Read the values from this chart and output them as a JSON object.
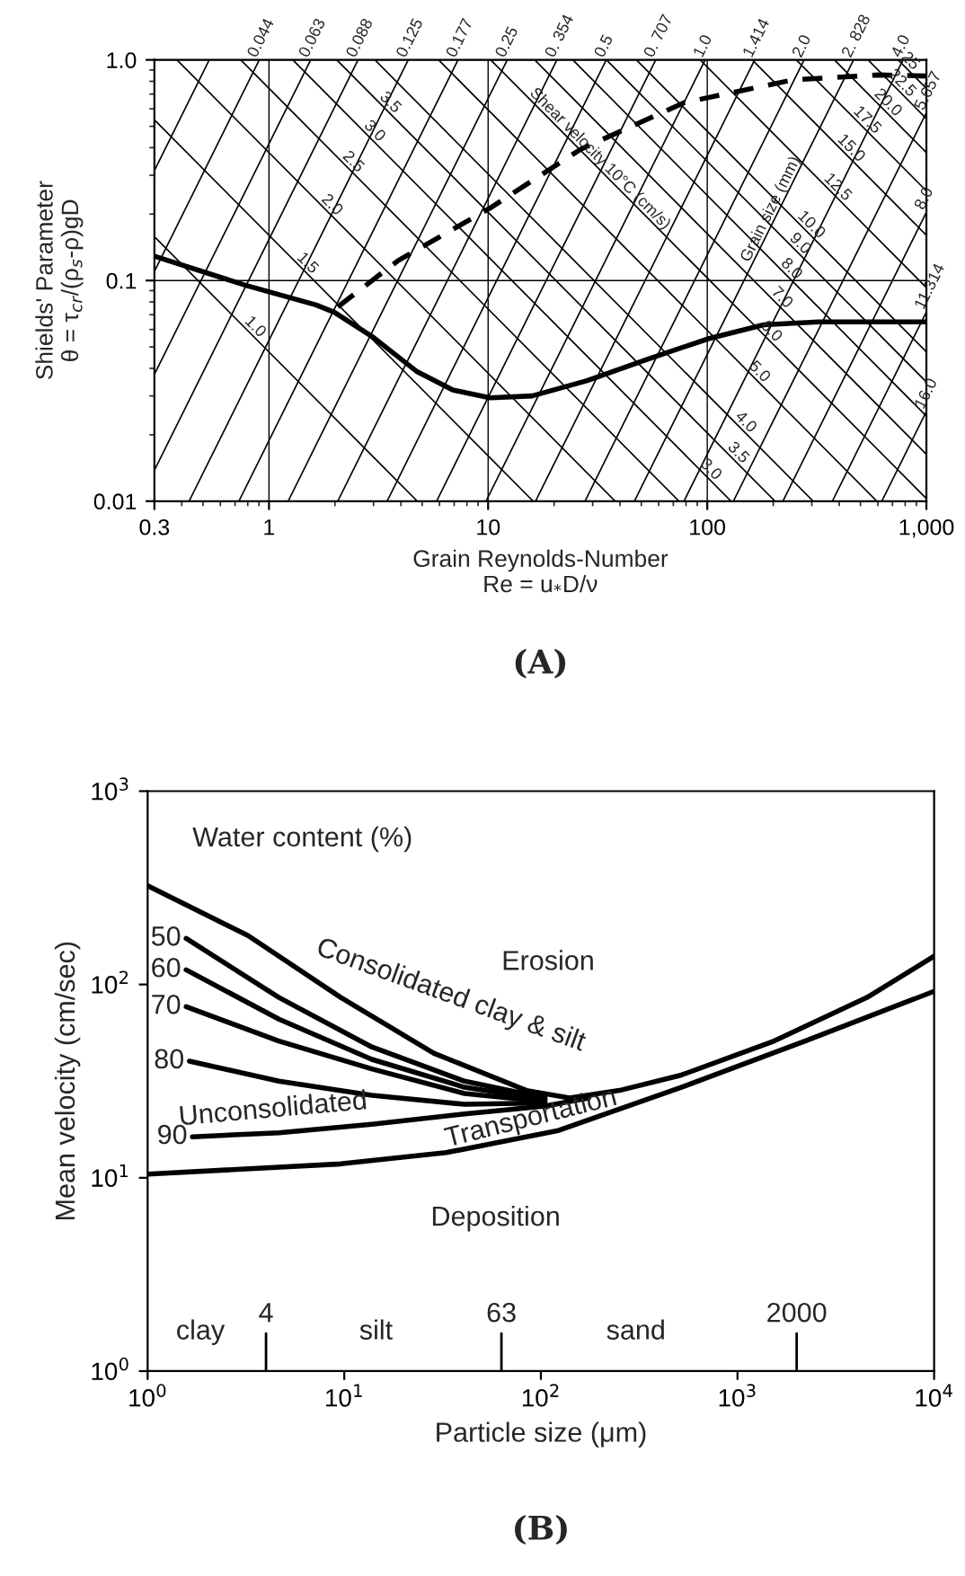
{
  "chart_data": [
    {
      "type": "line",
      "title": "(A)",
      "xlabel": "Grain Reynolds-Number\nRe = u$_{*}$D/ν",
      "ylabel": "Shields' Parameter\nθ = τ$_{cr}$/(ρ$_{s}$-ρ)gD",
      "log": "xy",
      "xlim": [
        0.3,
        1000
      ],
      "ylim": [
        0.01,
        1
      ],
      "xticks": [
        0.3,
        1,
        10,
        100,
        {
          "value": 1000,
          "label": "1,000"
        }
      ],
      "yticks": [
        0.01,
        0.1,
        {
          "value": 1,
          "label": "1.0"
        }
      ],
      "grid": true,
      "color": "#000000",
      "series": [
        {
          "x": [
            0.3,
            0.785,
            1.64,
            1.99,
            2.99,
            4.71,
            6.9,
            10.2,
            15.9,
            28.3,
            53.7,
            101.9,
            181,
            322,
            1000
          ],
          "values": [
            0.129,
            0.095,
            0.0775,
            0.0717,
            0.0553,
            0.0388,
            0.0319,
            0.0294,
            0.03,
            0.0352,
            0.0441,
            0.0546,
            0.063,
            0.065,
            0.065
          ]
        },
        {
          "x": [
            2.06,
            3.88,
            10.2,
            26.5,
            78.5,
            248,
            612,
            1000
          ],
          "values": [
            0.076,
            0.123,
            0.213,
            0.394,
            0.64,
            0.813,
            0.855,
            0.845
          ],
          "line_style": "dashed"
        },
        {
          "x": [
            0.3,
            0.534
          ],
          "values": [
            0.315,
            1
          ]
        },
        {
          "x": [
            0.3,
            0.903
          ],
          "values": [
            0.11,
            1
          ]
        },
        {
          "x": [
            0.3,
            1.55
          ],
          "values": [
            0.0376,
            1
          ]
        },
        {
          "x": [
            0.3,
            2.55
          ],
          "values": [
            0.0138,
            1
          ]
        },
        {
          "x": [
            0.432,
            4.32
          ],
          "values": [
            0.01,
            1
          ]
        },
        {
          "x": [
            0.729,
            7.29
          ],
          "values": [
            0.01,
            1
          ]
        },
        {
          "x": [
            1.223,
            12.23
          ],
          "values": [
            0.01,
            1
          ]
        },
        {
          "x": [
            2.06,
            20.6
          ],
          "values": [
            0.01,
            1
          ]
        },
        {
          "x": [
            3.46,
            34.6
          ],
          "values": [
            0.01,
            1
          ]
        },
        {
          "x": [
            5.82,
            58.2
          ],
          "values": [
            0.01,
            1
          ]
        },
        {
          "x": [
            9.78,
            97.8
          ],
          "values": [
            0.01,
            1
          ]
        },
        {
          "x": [
            16.46,
            164.6
          ],
          "values": [
            0.01,
            1
          ]
        },
        {
          "x": [
            27.67,
            276.7
          ],
          "values": [
            0.01,
            1
          ]
        },
        {
          "x": [
            46.5,
            465.4
          ],
          "values": [
            0.01,
            1
          ]
        },
        {
          "x": [
            78.3,
            782.6
          ],
          "values": [
            0.01,
            1
          ]
        },
        {
          "x": [
            131.6,
            1000
          ],
          "values": [
            0.01,
            0.577
          ]
        },
        {
          "x": [
            221.4,
            1000
          ],
          "values": [
            0.01,
            0.204
          ]
        },
        {
          "x": [
            372.3,
            1000
          ],
          "values": [
            0.01,
            0.0721
          ]
        },
        {
          "x": [
            626,
            1000
          ],
          "values": [
            0.01,
            0.0255
          ]
        },
        {
          "x": [
            0.3,
            4.75
          ],
          "values": [
            0.158,
            0.01
          ]
        },
        {
          "x": [
            0.3,
            16.05
          ],
          "values": [
            0.535,
            0.01
          ]
        },
        {
          "x": [
            0.38,
            38.0
          ],
          "values": [
            1,
            0.01
          ]
        },
        {
          "x": [
            0.743,
            74.3
          ],
          "values": [
            1,
            0.01
          ]
        },
        {
          "x": [
            1.284,
            128.4
          ],
          "values": [
            1,
            0.01
          ]
        },
        {
          "x": [
            2.038,
            203.8
          ],
          "values": [
            1,
            0.01
          ]
        },
        {
          "x": [
            3.042,
            304.2
          ],
          "values": [
            1,
            0.01
          ]
        },
        {
          "x": [
            5.94,
            594
          ],
          "values": [
            1,
            0.01
          ]
        },
        {
          "x": [
            10.27,
            1000
          ],
          "values": [
            1,
            0.01027
          ]
        },
        {
          "x": [
            16.31,
            1000
          ],
          "values": [
            1,
            0.0163
          ]
        },
        {
          "x": [
            24.34,
            1000
          ],
          "values": [
            1,
            0.0243
          ]
        },
        {
          "x": [
            34.65,
            1000
          ],
          "values": [
            1,
            0.0347
          ]
        },
        {
          "x": [
            47.5,
            1000
          ],
          "values": [
            1,
            0.0475
          ]
        },
        {
          "x": [
            92.8,
            1000
          ],
          "values": [
            1,
            0.0928
          ]
        },
        {
          "x": [
            160.4,
            1000
          ],
          "values": [
            1,
            0.1604
          ]
        },
        {
          "x": [
            254.7,
            1000
          ],
          "values": [
            1,
            0.2547
          ]
        },
        {
          "x": [
            380.2,
            1000
          ],
          "values": [
            1,
            0.38
          ]
        },
        {
          "x": [
            541.5,
            1000
          ],
          "values": [
            1,
            0.5415
          ]
        },
        {
          "x": [
            742.7,
            1000
          ],
          "values": [
            1,
            0.7427
          ]
        }
      ],
      "annotations": [
        {
          "text": "0.044",
          "x": 0.903,
          "y": 1
        },
        {
          "text": "0.063",
          "x": 1.55,
          "y": 1
        },
        {
          "text": "0.088",
          "x": 2.55,
          "y": 1
        },
        {
          "text": "0.125",
          "x": 4.32,
          "y": 1
        },
        {
          "text": "0.177",
          "x": 7.29,
          "y": 1
        },
        {
          "text": "0.25",
          "x": 12.23,
          "y": 1
        },
        {
          "text": "0. 354",
          "x": 20.6,
          "y": 1
        },
        {
          "text": "0.5",
          "x": 34.6,
          "y": 1
        },
        {
          "text": "0. 707",
          "x": 58.2,
          "y": 1
        },
        {
          "text": "1.0",
          "x": 97.8,
          "y": 1
        },
        {
          "text": "1.414",
          "x": 164.6,
          "y": 1
        },
        {
          "text": "2.0",
          "x": 276.7,
          "y": 1
        },
        {
          "text": "2. 828",
          "x": 465.4,
          "y": 1
        },
        {
          "text": "4.0",
          "x": 782.6,
          "y": 1
        },
        {
          "text": "5.657",
          "x": 1000,
          "y": 0.577
        },
        {
          "text": "8.0",
          "x": 1000,
          "y": 0.204
        },
        {
          "text": "11.314",
          "x": 1000,
          "y": 0.0721
        },
        {
          "text": "16.0",
          "x": 1000,
          "y": 0.0255
        },
        {
          "text": "1.0",
          "x": 0.75,
          "y": 0.0633
        },
        {
          "text": "1.5",
          "x": 1.3,
          "y": 0.123
        },
        {
          "text": "2.0",
          "x": 1.68,
          "y": 0.226
        },
        {
          "text": "2.5",
          "x": 2.1,
          "y": 0.354
        },
        {
          "text": "3.0",
          "x": 2.63,
          "y": 0.488
        },
        {
          "text": "3.5",
          "x": 3.1,
          "y": 0.657
        },
        {
          "text": "3.0",
          "x": 90,
          "y": 0.01427
        },
        {
          "text": "3.5",
          "x": 120,
          "y": 0.017
        },
        {
          "text": "4.0",
          "x": 130,
          "y": 0.0234
        },
        {
          "text": "5.0",
          "x": 150,
          "y": 0.0396
        },
        {
          "text": "6.0",
          "x": 170,
          "y": 0.0604
        },
        {
          "text": "7.0",
          "x": 190,
          "y": 0.0858
        },
        {
          "text": "8.0",
          "x": 210,
          "y": 0.1159
        },
        {
          "text": "9.0",
          "x": 230,
          "y": 0.1507
        },
        {
          "text": "10.0",
          "x": 250,
          "y": 0.19
        },
        {
          "text": "12.5",
          "x": 330,
          "y": 0.281
        },
        {
          "text": "15.0",
          "x": 380,
          "y": 0.422
        },
        {
          "text": "17.5",
          "x": 450,
          "y": 0.566
        },
        {
          "text": "20.0",
          "x": 560,
          "y": 0.679
        },
        {
          "text": "22.5",
          "x": 650,
          "y": 0.833
        },
        {
          "text": "25",
          "x": 745,
          "y": 0.997
        },
        {
          "text": "Shear velocity 10°C (cm/s)",
          "x": 15,
          "y": 0.685
        },
        {
          "text": "Grain size (mm)",
          "x": 160,
          "y": 0.1183
        }
      ]
    },
    {
      "type": "line",
      "title": "(B)",
      "xlabel": "Particle size (μm)",
      "ylabel": "Mean velocity (cm/sec)",
      "log": "xy",
      "xlim": [
        1,
        10000
      ],
      "ylim": [
        1,
        1000
      ],
      "xticks": [
        {
          "value": 1,
          "label": "10$^{0}$"
        },
        {
          "value": 10,
          "label": "10$^{1}$"
        },
        {
          "value": 100,
          "label": "10$^{2}$"
        },
        {
          "value": 1000,
          "label": "10$^{3}$"
        },
        {
          "value": 10000,
          "label": "10$^{4}$"
        }
      ],
      "yticks": [
        {
          "value": 1,
          "label": "10$^{0}$"
        },
        {
          "value": 10,
          "label": "10$^{1}$"
        },
        {
          "value": 100,
          "label": "10$^{2}$"
        },
        {
          "value": 1000,
          "label": "10$^{3}$"
        }
      ],
      "color": "#000000",
      "series": [
        {
          "x": [
            1,
            3.24,
            9.6,
            28.5,
            84.5,
            140,
            251,
            518,
            1536,
            4560,
            10000
          ],
          "values": [
            324,
            179,
            85.7,
            44.1,
            28.3,
            25.9,
            28.3,
            34,
            51,
            85.7,
            140
          ]
        },
        {
          "name": "50",
          "x": [
            1.57,
            4.65,
            13.8,
            40.9,
            105
          ],
          "values": [
            173,
            85.7,
            47.5,
            31.6,
            25.9
          ]
        },
        {
          "name": "60",
          "x": [
            1.57,
            4.65,
            13.8,
            40.9,
            105
          ],
          "values": [
            119,
            66.2,
            41,
            29.4,
            25.4
          ]
        },
        {
          "name": "70",
          "x": [
            1.57,
            4.65,
            13.8,
            40.9,
            105
          ],
          "values": [
            76.7,
            51,
            36.6,
            27.3,
            24.8
          ]
        },
        {
          "name": "80",
          "x": [
            1.63,
            4.65,
            13.8,
            40.9,
            105
          ],
          "values": [
            40.1,
            31.6,
            26.7,
            24.0,
            24.4
          ]
        },
        {
          "name": "90",
          "x": [
            1.69,
            4.65,
            13.8,
            40.9,
            105,
            175
          ],
          "values": [
            16.3,
            17.1,
            18.9,
            21.4,
            23.5,
            25.9
          ]
        },
        {
          "x": [
            1,
            9.6,
            33,
            121,
            518,
            2207,
            10000
          ],
          "values": [
            10.45,
            11.8,
            13.5,
            17.5,
            29.4,
            51,
            92.2
          ]
        }
      ],
      "ref_lines": [
        {
          "axis": "x",
          "value": 4,
          "label": "4"
        },
        {
          "axis": "x",
          "value": 63,
          "label": "63"
        },
        {
          "axis": "x",
          "value": 2000,
          "label": "2000"
        }
      ],
      "annotations": [
        "Water content (%)",
        "Erosion",
        "Consolidated clay & silt",
        "Unconsolidated",
        "Transportation",
        "Deposition",
        "clay",
        "silt",
        "sand"
      ]
    }
  ]
}
